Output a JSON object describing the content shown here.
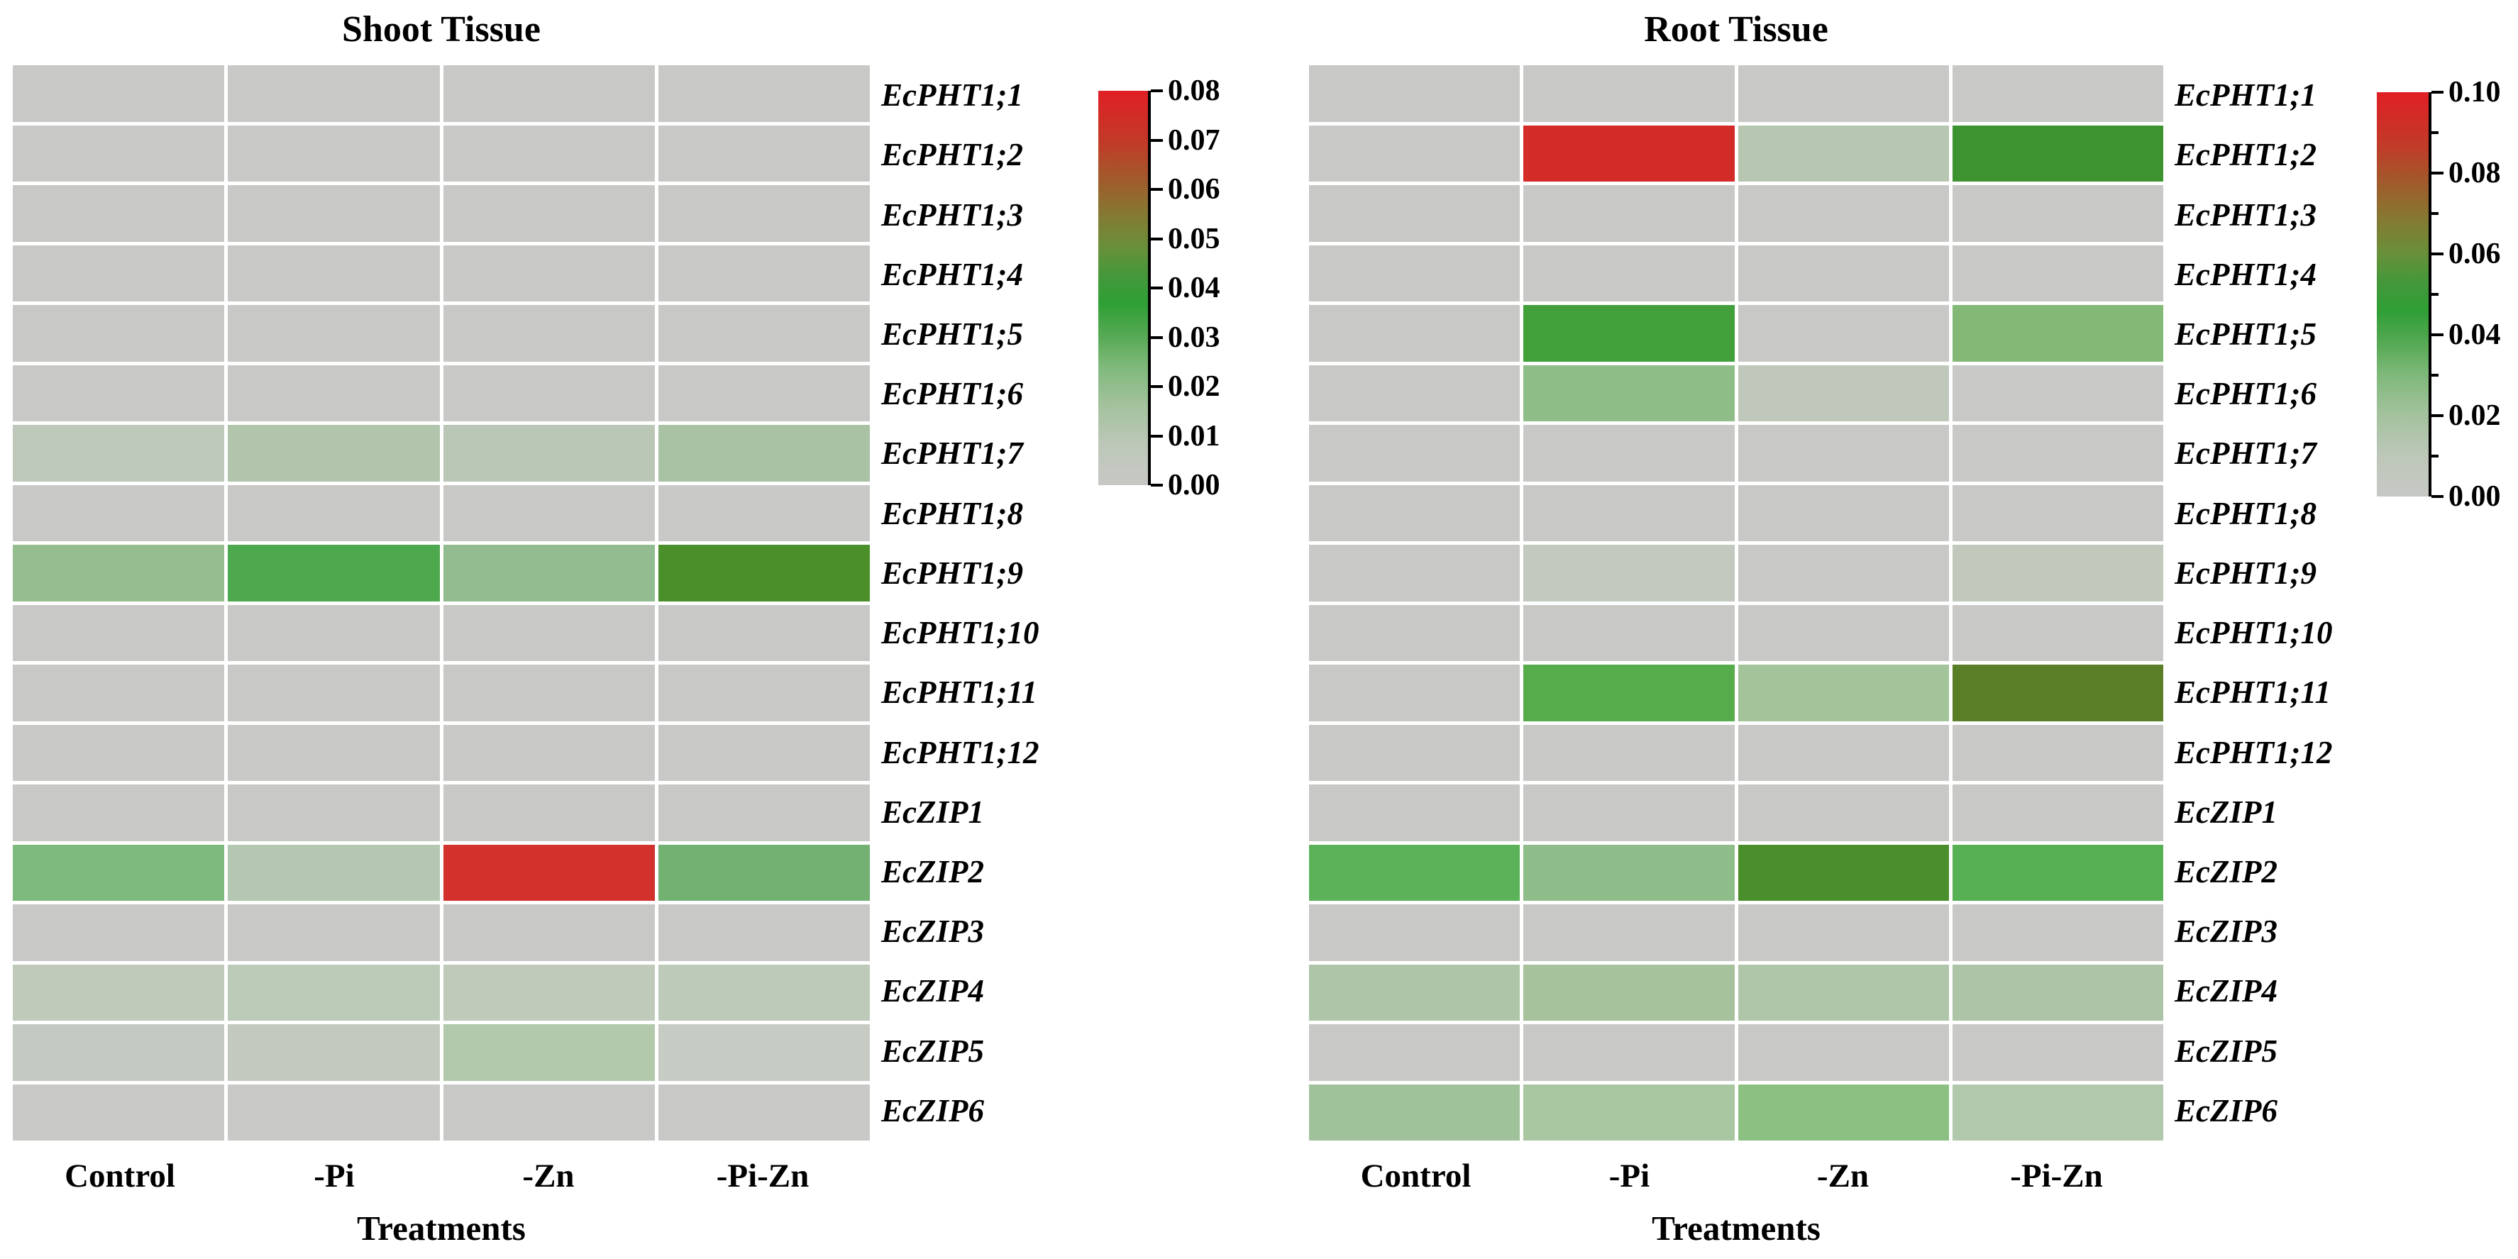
{
  "chart_data": [
    {
      "type": "heatmap",
      "title": "Shoot Tissue",
      "xlabel": "Treatments",
      "x_categories": [
        "Control",
        "-Pi",
        "-Zn",
        "-Pi-Zn"
      ],
      "y_categories": [
        "EcPHT1;1",
        "EcPHT1;2",
        "EcPHT1;3",
        "EcPHT1;4",
        "EcPHT1;5",
        "EcPHT1;6",
        "EcPHT1;7",
        "EcPHT1;8",
        "EcPHT1;9",
        "EcPHT1;10",
        "EcPHT1;11",
        "EcPHT1;12",
        "EcZIP1",
        "EcZIP2",
        "EcZIP3",
        "EcZIP4",
        "EcZIP5",
        "EcZIP6"
      ],
      "values": [
        [
          0,
          0,
          0,
          0
        ],
        [
          0,
          0,
          0,
          0
        ],
        [
          0,
          0,
          0,
          0
        ],
        [
          0,
          0,
          0,
          0
        ],
        [
          0,
          0,
          0,
          0
        ],
        [
          0,
          0,
          0,
          0
        ],
        [
          0.008,
          0.012,
          0.009,
          0.015
        ],
        [
          0,
          0,
          0,
          0
        ],
        [
          0.02,
          0.035,
          0.021,
          0.05
        ],
        [
          0,
          0,
          0,
          0
        ],
        [
          0,
          0,
          0,
          0
        ],
        [
          0,
          0,
          0,
          0
        ],
        [
          0,
          0,
          0,
          0
        ],
        [
          0.026,
          0.011,
          0.075,
          0.028
        ],
        [
          0,
          0,
          0,
          0
        ],
        [
          0.008,
          0.009,
          0.008,
          0.008
        ],
        [
          0.003,
          0.004,
          0.012,
          0.002
        ],
        [
          0.001,
          0.001,
          0.001,
          0.001
        ]
      ],
      "cell_colors": [
        [
          "#c8c9c6",
          "#c8c9c6",
          "#c8c9c6",
          "#c8c9c6"
        ],
        [
          "#c8c9c6",
          "#c8c9c6",
          "#c8c9c6",
          "#c8c9c6"
        ],
        [
          "#c8c9c6",
          "#c8c9c6",
          "#c8c9c6",
          "#c8c9c6"
        ],
        [
          "#c8c9c6",
          "#c8c9c6",
          "#c8c9c6",
          "#c8c9c6"
        ],
        [
          "#c8c9c6",
          "#c8c9c6",
          "#c8c9c6",
          "#c8c9c6"
        ],
        [
          "#c8c9c6",
          "#c8c9c6",
          "#c8c9c6",
          "#c8c9c6"
        ],
        [
          "#bec8ba",
          "#b0c5ab",
          "#bac7b6",
          "#a9c2a3"
        ],
        [
          "#c8c9c6",
          "#c8c9c6",
          "#c8c9c6",
          "#c8c9c6"
        ],
        [
          "#95bd90",
          "#4ea84e",
          "#92bc8f",
          "#4b8f2b"
        ],
        [
          "#c8c9c6",
          "#c8c9c6",
          "#c8c9c6",
          "#c8c9c6"
        ],
        [
          "#c8c9c6",
          "#c8c9c6",
          "#c8c9c6",
          "#c8c9c6"
        ],
        [
          "#c8c9c6",
          "#c8c9c6",
          "#c8c9c6",
          "#c8c9c6"
        ],
        [
          "#c8c9c6",
          "#c8c9c6",
          "#c8c9c6",
          "#c8c9c6"
        ],
        [
          "#7eb97e",
          "#b4c7b0",
          "#d2312c",
          "#72b172"
        ],
        [
          "#c8c9c6",
          "#c8c9c6",
          "#c8c9c6",
          "#c8c9c6"
        ],
        [
          "#bfcaba",
          "#bccab8",
          "#bfcaba",
          "#bdcab9"
        ],
        [
          "#c4cac2",
          "#c2c9bf",
          "#b2c9ac",
          "#c6cbc4"
        ],
        [
          "#c8c9c6",
          "#c8c9c6",
          "#c8c9c6",
          "#c8c9c6"
        ]
      ],
      "colorbar": {
        "range": [
          0.0,
          0.08
        ],
        "ticks": [
          "0.08",
          "0.07",
          "0.06",
          "0.05",
          "0.04",
          "0.03",
          "0.02",
          "0.01",
          "0.00"
        ],
        "minor_ticks_between": false,
        "color_low": "#c7c8c5",
        "color_mid": "#2f9f35",
        "color_high": "#e01f25"
      },
      "legend_position": "right",
      "grid": false
    },
    {
      "type": "heatmap",
      "title": "Root Tissue",
      "xlabel": "Treatments",
      "x_categories": [
        "Control",
        "-Pi",
        "-Zn",
        "-Pi-Zn"
      ],
      "y_categories": [
        "EcPHT1;1",
        "EcPHT1;2",
        "EcPHT1;3",
        "EcPHT1;4",
        "EcPHT1;5",
        "EcPHT1;6",
        "EcPHT1;7",
        "EcPHT1;8",
        "EcPHT1;9",
        "EcPHT1;10",
        "EcPHT1;11",
        "EcPHT1;12",
        "EcZIP1",
        "EcZIP2",
        "EcZIP3",
        "EcZIP4",
        "EcZIP5",
        "EcZIP6"
      ],
      "values": [
        [
          0,
          0,
          0,
          0
        ],
        [
          0,
          0.095,
          0.012,
          0.055
        ],
        [
          0,
          0,
          0,
          0
        ],
        [
          0,
          0,
          0,
          0
        ],
        [
          0,
          0.048,
          0,
          0.03
        ],
        [
          0,
          0.028,
          0.008,
          0
        ],
        [
          0,
          0,
          0,
          0
        ],
        [
          0,
          0,
          0,
          0
        ],
        [
          0,
          0.006,
          0,
          0.006
        ],
        [
          0,
          0,
          0,
          0
        ],
        [
          0,
          0.045,
          0.02,
          0.065
        ],
        [
          0,
          0,
          0,
          0
        ],
        [
          0,
          0,
          0,
          0
        ],
        [
          0.042,
          0.028,
          0.06,
          0.043
        ],
        [
          0,
          0,
          0,
          0
        ],
        [
          0.018,
          0.02,
          0.017,
          0.018
        ],
        [
          0,
          0,
          0,
          0
        ],
        [
          0.022,
          0.02,
          0.028,
          0.015
        ]
      ],
      "cell_colors": [
        [
          "#c8c9c6",
          "#c8c9c6",
          "#c8c9c6",
          "#c8c9c6"
        ],
        [
          "#c8c9c6",
          "#d32b28",
          "#b7c6b1",
          "#3e9331"
        ],
        [
          "#c8c9c6",
          "#c8c9c6",
          "#c8c9c6",
          "#c8c9c6"
        ],
        [
          "#c8c9c6",
          "#c8c9c6",
          "#c8c9c6",
          "#c8c9c6"
        ],
        [
          "#c8c9c6",
          "#42a03a",
          "#c8c9c6",
          "#83b877"
        ],
        [
          "#c8c9c6",
          "#8fbd87",
          "#c0c8bc",
          "#c8c9c6"
        ],
        [
          "#c8c9c6",
          "#c8c9c6",
          "#c8c9c6",
          "#c8c9c6"
        ],
        [
          "#c8c9c6",
          "#c8c9c6",
          "#c8c9c6",
          "#c8c9c6"
        ],
        [
          "#c8c9c6",
          "#c2c9be",
          "#c8c9c6",
          "#c1c9bd"
        ],
        [
          "#c8c9c6",
          "#c8c9c6",
          "#c8c9c6",
          "#c8c9c6"
        ],
        [
          "#c8c9c6",
          "#56ab4a",
          "#a3c49a",
          "#5a7d28"
        ],
        [
          "#c8c9c6",
          "#c8c9c6",
          "#c8c9c6",
          "#c8c9c6"
        ],
        [
          "#c8c9c6",
          "#c8c9c6",
          "#c8c9c6",
          "#c8c9c6"
        ],
        [
          "#5cb258",
          "#8fbd8a",
          "#4a8f2c",
          "#58b054"
        ],
        [
          "#c8c9c6",
          "#c8c9c6",
          "#c8c9c6",
          "#c8c9c6"
        ],
        [
          "#aec6a7",
          "#a5c29c",
          "#b0c6a9",
          "#adc5a6"
        ],
        [
          "#c8c9c6",
          "#c8c9c6",
          "#c8c9c6",
          "#c8c9c6"
        ],
        [
          "#a0c29a",
          "#a8c6a0",
          "#8cc083",
          "#b2c8ac"
        ]
      ],
      "colorbar": {
        "range": [
          0.0,
          0.1
        ],
        "ticks": [
          "0.10",
          "0.08",
          "0.06",
          "0.04",
          "0.02",
          "0.00"
        ],
        "minor_ticks_between": true,
        "color_low": "#c7c8c5",
        "color_mid": "#2f9f35",
        "color_high": "#e01f25"
      },
      "legend_position": "right",
      "grid": false
    }
  ]
}
